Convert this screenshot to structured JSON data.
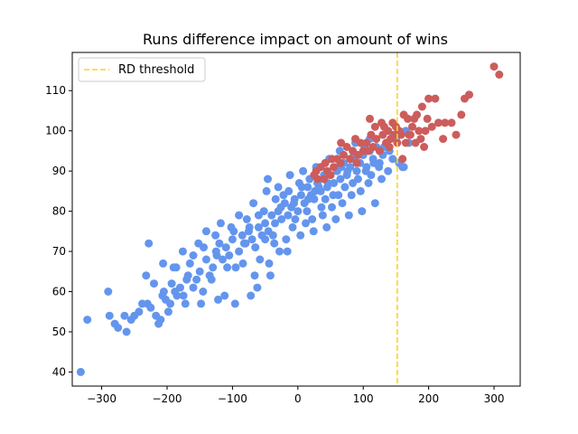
{
  "chart_data": {
    "type": "scatter",
    "title": "Runs difference impact on amount of wins",
    "xlabel": "",
    "ylabel": "",
    "xlim": [
      -345,
      340
    ],
    "ylim": [
      36.5,
      119.5
    ],
    "xticks": [
      -300,
      -200,
      -100,
      0,
      100,
      200,
      300
    ],
    "yticks": [
      40,
      50,
      60,
      70,
      80,
      90,
      100,
      110
    ],
    "grid": false,
    "legend": {
      "placement": "top-left",
      "entries": [
        "RD threshold"
      ]
    },
    "threshold": {
      "label": "RD threshold",
      "x": 152,
      "color": "#ffd21f",
      "style": "dashed"
    },
    "colors": {
      "below": "#6495ed",
      "above": "#cd5c5c"
    },
    "series": [
      {
        "color": "#6495ed",
        "points": [
          [
            -332,
            40
          ],
          [
            -322,
            53
          ],
          [
            -290,
            60
          ],
          [
            -288,
            54
          ],
          [
            -280,
            52
          ],
          [
            -275,
            51
          ],
          [
            -265,
            54
          ],
          [
            -262,
            50
          ],
          [
            -255,
            53
          ],
          [
            -250,
            54
          ],
          [
            -243,
            55
          ],
          [
            -238,
            57
          ],
          [
            -232,
            64
          ],
          [
            -230,
            57
          ],
          [
            -225,
            56
          ],
          [
            -220,
            62
          ],
          [
            -217,
            54
          ],
          [
            -213,
            52
          ],
          [
            -210,
            53
          ],
          [
            -207,
            59
          ],
          [
            -205,
            60
          ],
          [
            -202,
            58
          ],
          [
            -198,
            55
          ],
          [
            -195,
            57
          ],
          [
            -193,
            62
          ],
          [
            -190,
            66
          ],
          [
            -188,
            60
          ],
          [
            -185,
            59
          ],
          [
            -180,
            61
          ],
          [
            -175,
            59
          ],
          [
            -170,
            63
          ],
          [
            -168,
            64
          ],
          [
            -165,
            67
          ],
          [
            -160,
            61
          ],
          [
            -155,
            63
          ],
          [
            -150,
            65
          ],
          [
            -145,
            60
          ],
          [
            -140,
            68
          ],
          [
            -135,
            64
          ],
          [
            -130,
            66
          ],
          [
            -125,
            70
          ],
          [
            -120,
            72
          ],
          [
            -115,
            68
          ],
          [
            -110,
            71
          ],
          [
            -105,
            69
          ],
          [
            -100,
            73
          ],
          [
            -95,
            66
          ],
          [
            -90,
            70
          ],
          [
            -85,
            74
          ],
          [
            -80,
            72
          ],
          [
            -75,
            75
          ],
          [
            -70,
            73
          ],
          [
            -65,
            71
          ],
          [
            -60,
            76
          ],
          [
            -55,
            74
          ],
          [
            -50,
            77
          ],
          [
            -45,
            75
          ],
          [
            -40,
            79
          ],
          [
            -35,
            77
          ],
          [
            -30,
            80
          ],
          [
            -25,
            78
          ],
          [
            -20,
            82
          ],
          [
            -15,
            79
          ],
          [
            -10,
            81
          ],
          [
            -5,
            83
          ],
          [
            0,
            80
          ],
          [
            5,
            84
          ],
          [
            10,
            82
          ],
          [
            15,
            86
          ],
          [
            20,
            84
          ],
          [
            25,
            83
          ],
          [
            30,
            87
          ],
          [
            35,
            85
          ],
          [
            40,
            88
          ],
          [
            45,
            86
          ],
          [
            50,
            89
          ],
          [
            55,
            87
          ],
          [
            60,
            90
          ],
          [
            65,
            88
          ],
          [
            70,
            92
          ],
          [
            75,
            89
          ],
          [
            80,
            91
          ],
          [
            85,
            93
          ],
          [
            90,
            90
          ],
          [
            95,
            92
          ],
          [
            100,
            94
          ],
          [
            105,
            91
          ],
          [
            110,
            95
          ],
          [
            115,
            93
          ],
          [
            120,
            96
          ],
          [
            125,
            92
          ],
          [
            130,
            94
          ],
          [
            135,
            97
          ],
          [
            140,
            95
          ],
          [
            145,
            93
          ],
          [
            150,
            98
          ],
          [
            155,
            92
          ],
          [
            160,
            91
          ],
          [
            162,
            91
          ],
          [
            165,
            100
          ],
          [
            170,
            97
          ],
          [
            -228,
            72
          ],
          [
            -186,
            66
          ],
          [
            -172,
            57
          ],
          [
            -148,
            57
          ],
          [
            -132,
            63
          ],
          [
            -122,
            58
          ],
          [
            -112,
            59
          ],
          [
            -96,
            57
          ],
          [
            -72,
            59
          ],
          [
            -62,
            61
          ],
          [
            -42,
            64
          ],
          [
            -28,
            70
          ],
          [
            -18,
            73
          ],
          [
            -8,
            76
          ],
          [
            12,
            77
          ],
          [
            22,
            78
          ],
          [
            38,
            79
          ],
          [
            52,
            81
          ],
          [
            68,
            82
          ],
          [
            82,
            84
          ],
          [
            96,
            85
          ],
          [
            108,
            87
          ],
          [
            -140,
            75
          ],
          [
            -118,
            77
          ],
          [
            -90,
            79
          ],
          [
            -68,
            82
          ],
          [
            -48,
            85
          ],
          [
            -30,
            86
          ],
          [
            -12,
            89
          ],
          [
            8,
            90
          ],
          [
            28,
            91
          ],
          [
            48,
            93
          ],
          [
            64,
            95
          ],
          [
            88,
            97
          ],
          [
            -160,
            69
          ],
          [
            -144,
            71
          ],
          [
            -108,
            66
          ],
          [
            -84,
            67
          ],
          [
            -58,
            68
          ],
          [
            -36,
            72
          ],
          [
            -16,
            70
          ],
          [
            4,
            74
          ],
          [
            24,
            75
          ],
          [
            44,
            76
          ],
          [
            58,
            78
          ],
          [
            78,
            79
          ],
          [
            98,
            80
          ],
          [
            118,
            82
          ],
          [
            -206,
            67
          ],
          [
            -176,
            70
          ],
          [
            -152,
            72
          ],
          [
            -126,
            74
          ],
          [
            -102,
            76
          ],
          [
            -78,
            78
          ],
          [
            -52,
            80
          ],
          [
            -22,
            84
          ],
          [
            18,
            88
          ],
          [
            32,
            86
          ],
          [
            72,
            86
          ],
          [
            92,
            88
          ],
          [
            112,
            89
          ],
          [
            128,
            88
          ],
          [
            138,
            90
          ],
          [
            -66,
            64
          ],
          [
            -44,
            67
          ],
          [
            -4,
            78
          ],
          [
            36,
            81
          ],
          [
            62,
            84
          ],
          [
            84,
            87
          ],
          [
            104,
            90
          ],
          [
            124,
            91
          ],
          [
            -98,
            75
          ],
          [
            -74,
            76
          ],
          [
            -26,
            81
          ],
          [
            6,
            86
          ],
          [
            42,
            83
          ],
          [
            76,
            90
          ],
          [
            102,
            96
          ],
          [
            -14,
            85
          ],
          [
            14,
            80
          ],
          [
            54,
            84
          ],
          [
            86,
            94
          ],
          [
            116,
            92
          ],
          [
            -124,
            69
          ],
          [
            -82,
            72
          ],
          [
            -50,
            73
          ],
          [
            -6,
            82
          ],
          [
            26,
            85
          ],
          [
            66,
            91
          ],
          [
            132,
            96
          ],
          [
            -46,
            88
          ],
          [
            -34,
            83
          ],
          [
            2,
            87
          ],
          [
            40,
            89
          ],
          [
            -60,
            79
          ],
          [
            -38,
            74
          ],
          [
            16,
            83
          ],
          [
            46,
            87
          ],
          [
            80,
            93
          ],
          [
            110,
            98
          ],
          [
            146,
            99
          ]
        ]
      },
      {
        "color": "#cd5c5c",
        "points": [
          [
            308,
            114
          ],
          [
            300,
            116
          ],
          [
            262,
            109
          ],
          [
            255,
            108
          ],
          [
            250,
            104
          ],
          [
            242,
            99
          ],
          [
            235,
            102
          ],
          [
            225,
            102
          ],
          [
            222,
            98
          ],
          [
            215,
            102
          ],
          [
            210,
            108
          ],
          [
            205,
            101
          ],
          [
            200,
            108
          ],
          [
            198,
            103
          ],
          [
            195,
            100
          ],
          [
            190,
            106
          ],
          [
            185,
            100
          ],
          [
            182,
            104
          ],
          [
            178,
            103
          ],
          [
            175,
            101
          ],
          [
            172,
            99
          ],
          [
            168,
            103
          ],
          [
            165,
            97
          ],
          [
            162,
            104
          ],
          [
            158,
            99
          ],
          [
            155,
            100
          ],
          [
            150,
            101
          ],
          [
            148,
            99
          ],
          [
            145,
            102
          ],
          [
            142,
            98
          ],
          [
            138,
            100
          ],
          [
            135,
            97
          ],
          [
            130,
            99
          ],
          [
            128,
            102
          ],
          [
            125,
            95
          ],
          [
            120,
            98
          ],
          [
            115,
            96
          ],
          [
            112,
            99
          ],
          [
            110,
            103
          ],
          [
            105,
            97
          ],
          [
            100,
            95
          ],
          [
            96,
            97
          ],
          [
            92,
            94
          ],
          [
            88,
            98
          ],
          [
            84,
            95
          ],
          [
            80,
            93
          ],
          [
            75,
            96
          ],
          [
            70,
            94
          ],
          [
            65,
            92
          ],
          [
            60,
            93
          ],
          [
            55,
            91
          ],
          [
            50,
            89
          ],
          [
            45,
            90
          ],
          [
            40,
            88
          ],
          [
            35,
            91
          ],
          [
            30,
            88
          ],
          [
            25,
            89
          ],
          [
            160,
            93
          ],
          [
            170,
            99
          ],
          [
            180,
            97
          ],
          [
            188,
            98
          ],
          [
            193,
            96
          ],
          [
            140,
            96
          ],
          [
            118,
            101
          ],
          [
            108,
            95
          ],
          [
            66,
            97
          ],
          [
            52,
            93
          ],
          [
            42,
            92
          ],
          [
            28,
            90
          ],
          [
            90,
            92
          ],
          [
            132,
            101
          ],
          [
            152,
            97
          ]
        ]
      }
    ]
  }
}
